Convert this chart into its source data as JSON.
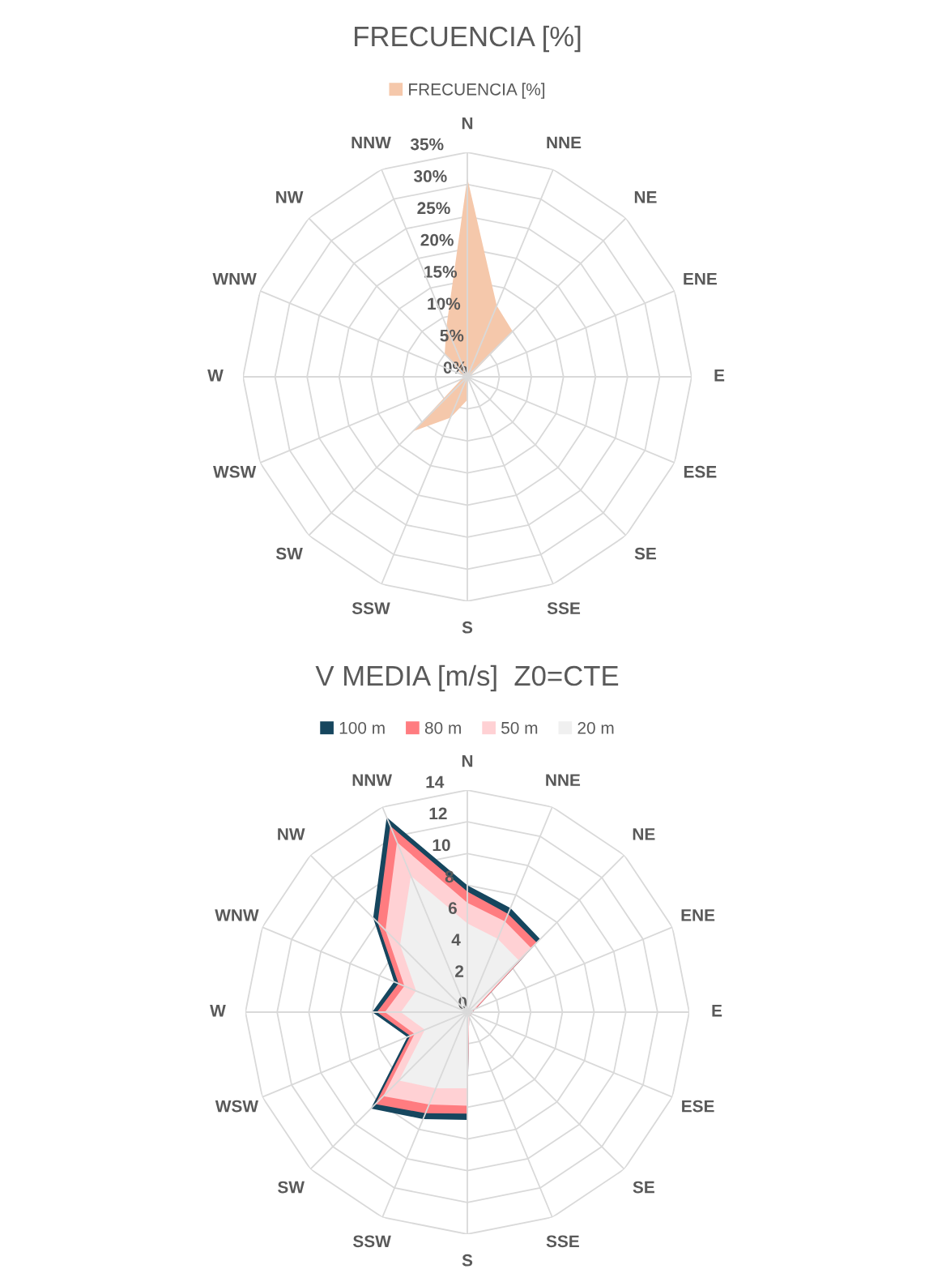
{
  "chart_data": [
    {
      "type": "radar",
      "title": "FRECUENCIA [%]",
      "categories": [
        "N",
        "NNE",
        "NE",
        "ENE",
        "E",
        "ESE",
        "SE",
        "SSE",
        "S",
        "SSW",
        "SW",
        "WSW",
        "W",
        "WNW",
        "NW",
        "NNW"
      ],
      "series": [
        {
          "name": "FRECUENCIA [%]",
          "color": "#f5c8ab",
          "values": [
            31,
            12,
            10,
            0.5,
            0.3,
            0.3,
            0.3,
            0.3,
            3.6,
            6.9,
            12,
            1,
            0.5,
            1,
            5,
            8.5
          ]
        }
      ],
      "ylim": [
        0,
        35
      ],
      "yticks": [
        {
          "value": 0,
          "label": "0%"
        },
        {
          "value": 5,
          "label": "5%"
        },
        {
          "value": 10,
          "label": "10%"
        },
        {
          "value": 15,
          "label": "15%"
        },
        {
          "value": 20,
          "label": "20%"
        },
        {
          "value": 25,
          "label": "25%"
        },
        {
          "value": 30,
          "label": "30%"
        },
        {
          "value": 35,
          "label": "35%"
        }
      ],
      "legend": "top",
      "grid": true
    },
    {
      "type": "radar",
      "title": "V MEDIA [m/s]  Z0=CTE",
      "categories": [
        "N",
        "NNE",
        "NE",
        "ENE",
        "E",
        "ESE",
        "SE",
        "SSE",
        "S",
        "SSW",
        "SW",
        "WSW",
        "W",
        "WNW",
        "NW",
        "NNW"
      ],
      "series": [
        {
          "name": "100 m",
          "color": "#16465e",
          "values": [
            8.0,
            7.1,
            6.5,
            0.6,
            0.3,
            0.3,
            0.3,
            0.3,
            6.8,
            7.3,
            8.6,
            4.1,
            6.0,
            5.0,
            8.4,
            13.3
          ]
        },
        {
          "name": "80 m",
          "color": "#ff7c80",
          "values": [
            7.6,
            6.7,
            6.2,
            0.6,
            0.3,
            0.3,
            0.3,
            0.3,
            6.4,
            6.9,
            8.2,
            3.9,
            5.7,
            4.7,
            8.0,
            12.7
          ]
        },
        {
          "name": "50 m",
          "color": "#ffd1d4",
          "values": [
            6.9,
            6.2,
            5.7,
            0.5,
            0.3,
            0.3,
            0.3,
            0.3,
            5.9,
            6.3,
            7.5,
            3.6,
            5.2,
            4.3,
            7.3,
            11.6
          ]
        },
        {
          "name": "20 m",
          "color": "#f0f0f0",
          "values": [
            5.6,
            5.0,
            4.6,
            0.4,
            0.2,
            0.2,
            0.2,
            0.2,
            4.8,
            5.2,
            6.1,
            2.9,
            4.2,
            3.5,
            6.0,
            9.3
          ]
        }
      ],
      "ylim": [
        0,
        14
      ],
      "yticks": [
        0,
        2,
        4,
        6,
        8,
        10,
        12,
        14
      ],
      "legend": "top",
      "grid": true
    }
  ]
}
